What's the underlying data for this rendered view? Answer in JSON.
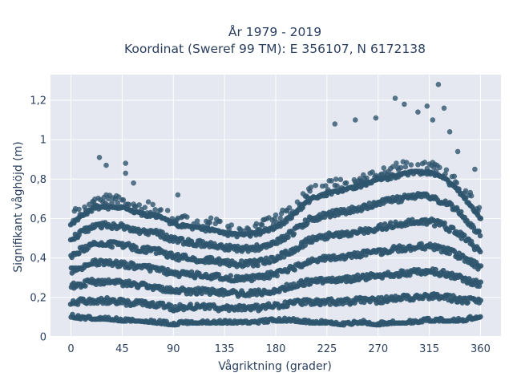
{
  "chart_data": {
    "type": "scatter",
    "title": "År 1979 - 2019",
    "subtitle": "Koordinat (Sweref 99 TM): E 356107, N 6172138",
    "xlabel": "Vågriktning (grader)",
    "ylabel": "Signifikant våghöjd (m)",
    "xlim": [
      -18,
      378
    ],
    "ylim": [
      0,
      1.33
    ],
    "x_ticks": [
      0,
      45,
      90,
      135,
      180,
      225,
      270,
      315,
      360
    ],
    "x_tick_labels": [
      "0",
      "45",
      "90",
      "135",
      "180",
      "225",
      "270",
      "315",
      "360"
    ],
    "y_ticks": [
      0,
      0.2,
      0.4,
      0.6,
      0.8,
      1.0,
      1.2
    ],
    "y_tick_labels": [
      "0",
      "0,2",
      "0,4",
      "0,6",
      "0,8",
      "1",
      "1,2"
    ],
    "grid": true,
    "marker_color": "#2f556e",
    "plot_background": "#e5e8f1",
    "series": [
      {
        "envelope": {
          "x": [
            0,
            10,
            20,
            30,
            45,
            60,
            75,
            90,
            105,
            120,
            135,
            150,
            165,
            180,
            195,
            210,
            225,
            240,
            255,
            270,
            285,
            300,
            315,
            330,
            345,
            360
          ],
          "y_min": [
            0.1,
            0.09,
            0.09,
            0.09,
            0.08,
            0.08,
            0.07,
            0.06,
            0.07,
            0.07,
            0.07,
            0.07,
            0.07,
            0.08,
            0.08,
            0.07,
            0.07,
            0.06,
            0.07,
            0.06,
            0.07,
            0.07,
            0.08,
            0.08,
            0.08,
            0.1
          ],
          "y_dense_max": [
            0.57,
            0.62,
            0.66,
            0.66,
            0.66,
            0.63,
            0.62,
            0.58,
            0.56,
            0.55,
            0.53,
            0.52,
            0.53,
            0.56,
            0.62,
            0.7,
            0.73,
            0.75,
            0.77,
            0.8,
            0.82,
            0.84,
            0.84,
            0.8,
            0.72,
            0.6
          ]
        },
        "outliers": [
          {
            "x": 25,
            "y": 0.91
          },
          {
            "x": 31,
            "y": 0.87
          },
          {
            "x": 48,
            "y": 0.88
          },
          {
            "x": 48,
            "y": 0.83
          },
          {
            "x": 55,
            "y": 0.78
          },
          {
            "x": 94,
            "y": 0.72
          },
          {
            "x": 232,
            "y": 1.08
          },
          {
            "x": 250,
            "y": 1.1
          },
          {
            "x": 268,
            "y": 1.11
          },
          {
            "x": 285,
            "y": 1.21
          },
          {
            "x": 293,
            "y": 1.18
          },
          {
            "x": 305,
            "y": 1.14
          },
          {
            "x": 313,
            "y": 1.17
          },
          {
            "x": 323,
            "y": 1.28
          },
          {
            "x": 318,
            "y": 1.1
          },
          {
            "x": 328,
            "y": 1.16
          },
          {
            "x": 333,
            "y": 1.04
          },
          {
            "x": 340,
            "y": 0.94
          },
          {
            "x": 355,
            "y": 0.85
          }
        ]
      }
    ]
  }
}
